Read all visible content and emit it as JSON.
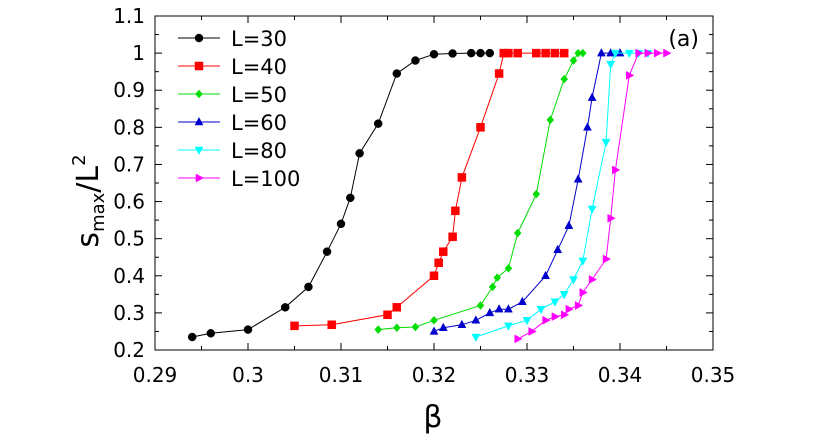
{
  "chart_data": {
    "type": "line",
    "panel_label": "(a)",
    "xlabel": "β",
    "ylabel_main": "s",
    "ylabel_sub": "max",
    "ylabel_tail": "/L",
    "ylabel_sup": "2",
    "xlim": [
      0.29,
      0.35
    ],
    "ylim": [
      0.2,
      1.1
    ],
    "xticks": [
      0.29,
      0.3,
      0.31,
      0.32,
      0.33,
      0.34,
      0.35
    ],
    "xtick_labels": [
      "0.29",
      "0.3",
      "0.31",
      "0.32",
      "0.33",
      "0.34",
      "0.35"
    ],
    "yticks": [
      0.2,
      0.3,
      0.4,
      0.5,
      0.6,
      0.7,
      0.8,
      0.9,
      1.0,
      1.1
    ],
    "ytick_labels": [
      "0.2",
      "0.3",
      "0.4",
      "0.5",
      "0.6",
      "0.7",
      "0.8",
      "0.9",
      "1",
      "1.1"
    ],
    "legend_position": "top-left",
    "series": [
      {
        "name": "L=30",
        "color": "#000000",
        "marker": "circle",
        "x": [
          0.294,
          0.296,
          0.3,
          0.304,
          0.3065,
          0.3085,
          0.31,
          0.311,
          0.312,
          0.314,
          0.316,
          0.318,
          0.32,
          0.322,
          0.324,
          0.325,
          0.326
        ],
        "y": [
          0.235,
          0.245,
          0.255,
          0.315,
          0.37,
          0.465,
          0.54,
          0.61,
          0.73,
          0.81,
          0.945,
          0.98,
          0.997,
          0.999,
          1.0,
          1.0,
          1.0
        ]
      },
      {
        "name": "L=40",
        "color": "#ff0000",
        "marker": "square",
        "x": [
          0.305,
          0.309,
          0.315,
          0.316,
          0.32,
          0.3205,
          0.321,
          0.322,
          0.3223,
          0.323,
          0.325,
          0.327,
          0.3275,
          0.328,
          0.329,
          0.331,
          0.332,
          0.333,
          0.334
        ],
        "y": [
          0.265,
          0.268,
          0.295,
          0.315,
          0.4,
          0.435,
          0.465,
          0.505,
          0.575,
          0.665,
          0.8,
          0.945,
          1.0,
          1.0,
          1.0,
          1.0,
          1.0,
          1.0,
          1.0
        ]
      },
      {
        "name": "L=50",
        "color": "#00dd00",
        "marker": "diamond",
        "x": [
          0.314,
          0.316,
          0.318,
          0.32,
          0.325,
          0.3263,
          0.3268,
          0.328,
          0.329,
          0.331,
          0.3325,
          0.334,
          0.335,
          0.3355,
          0.336
        ],
        "y": [
          0.255,
          0.26,
          0.262,
          0.28,
          0.32,
          0.37,
          0.395,
          0.42,
          0.515,
          0.62,
          0.82,
          0.93,
          0.98,
          1.0,
          1.0
        ]
      },
      {
        "name": "L=60",
        "color": "#0000cc",
        "marker": "triangle-up",
        "x": [
          0.32,
          0.321,
          0.323,
          0.3245,
          0.326,
          0.327,
          0.328,
          0.3295,
          0.332,
          0.3333,
          0.3345,
          0.3355,
          0.3365,
          0.337,
          0.338,
          0.339,
          0.34
        ],
        "y": [
          0.25,
          0.26,
          0.268,
          0.28,
          0.3,
          0.31,
          0.31,
          0.33,
          0.4,
          0.47,
          0.535,
          0.66,
          0.8,
          0.88,
          1.0,
          1.0,
          1.0
        ]
      },
      {
        "name": "L=80",
        "color": "#00ffff",
        "marker": "triangle-down",
        "x": [
          0.3245,
          0.328,
          0.33,
          0.3315,
          0.333,
          0.334,
          0.335,
          0.336,
          0.337,
          0.3385,
          0.339,
          0.3395,
          0.341,
          0.342,
          0.343
        ],
        "y": [
          0.235,
          0.265,
          0.28,
          0.31,
          0.33,
          0.35,
          0.39,
          0.44,
          0.58,
          0.76,
          0.97,
          1.0,
          1.0,
          1.0,
          1.0
        ]
      },
      {
        "name": "L=100",
        "color": "#ff00ff",
        "marker": "triangle-right",
        "x": [
          0.329,
          0.3305,
          0.332,
          0.333,
          0.334,
          0.3345,
          0.3355,
          0.336,
          0.337,
          0.3385,
          0.339,
          0.3395,
          0.341,
          0.342,
          0.343,
          0.344,
          0.345
        ],
        "y": [
          0.23,
          0.25,
          0.28,
          0.29,
          0.295,
          0.31,
          0.32,
          0.355,
          0.39,
          0.445,
          0.555,
          0.685,
          0.94,
          1.0,
          1.0,
          1.0,
          1.0
        ]
      }
    ]
  }
}
